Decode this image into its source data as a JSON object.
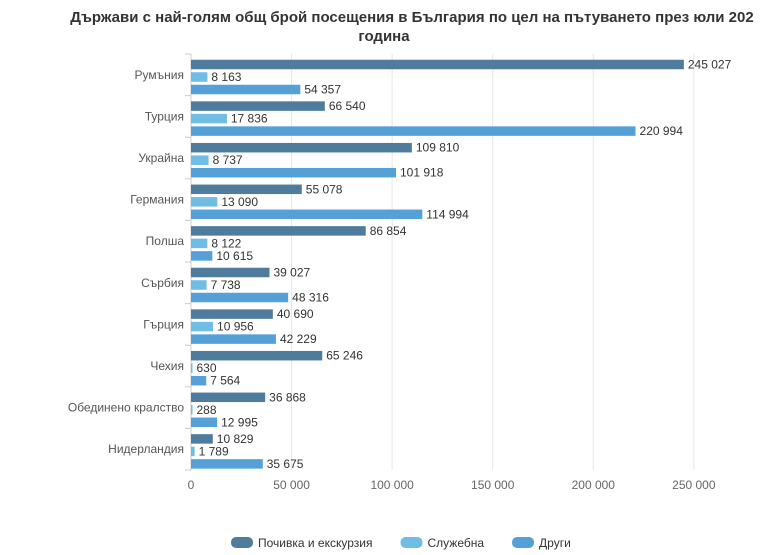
{
  "chart_data": {
    "type": "bar",
    "orientation": "horizontal",
    "title_line1": "Държави с най-голям общ брой посещения в България по цел на пътуването през юли 202",
    "title_line2": "година",
    "categories": [
      "Румъния",
      "Турция",
      "Украйна",
      "Германия",
      "Полша",
      "Сърбия",
      "Гърция",
      "Чехия",
      "Обединено кралство",
      "Нидерландия"
    ],
    "series": [
      {
        "name": "Почивка и екскурзия",
        "color": "#4f7c9c",
        "values": [
          245027,
          66540,
          109810,
          55078,
          86854,
          39027,
          40690,
          65246,
          36868,
          10829
        ]
      },
      {
        "name": "Служебна",
        "color": "#6fbde3",
        "values": [
          8163,
          17836,
          8737,
          13090,
          8122,
          7738,
          10956,
          630,
          288,
          1789
        ]
      },
      {
        "name": "Други",
        "color": "#56a0d8",
        "values": [
          54357,
          220994,
          101918,
          114994,
          10615,
          48316,
          42229,
          7564,
          12995,
          35675
        ]
      }
    ],
    "xlim": [
      0,
      262000
    ],
    "ticks": [
      0,
      50000,
      100000,
      150000,
      200000,
      250000
    ],
    "tick_labels": [
      "0",
      "50 000",
      "100 000",
      "150 000",
      "200 000",
      "250 000"
    ],
    "grid": true,
    "legend_position": "bottom"
  }
}
